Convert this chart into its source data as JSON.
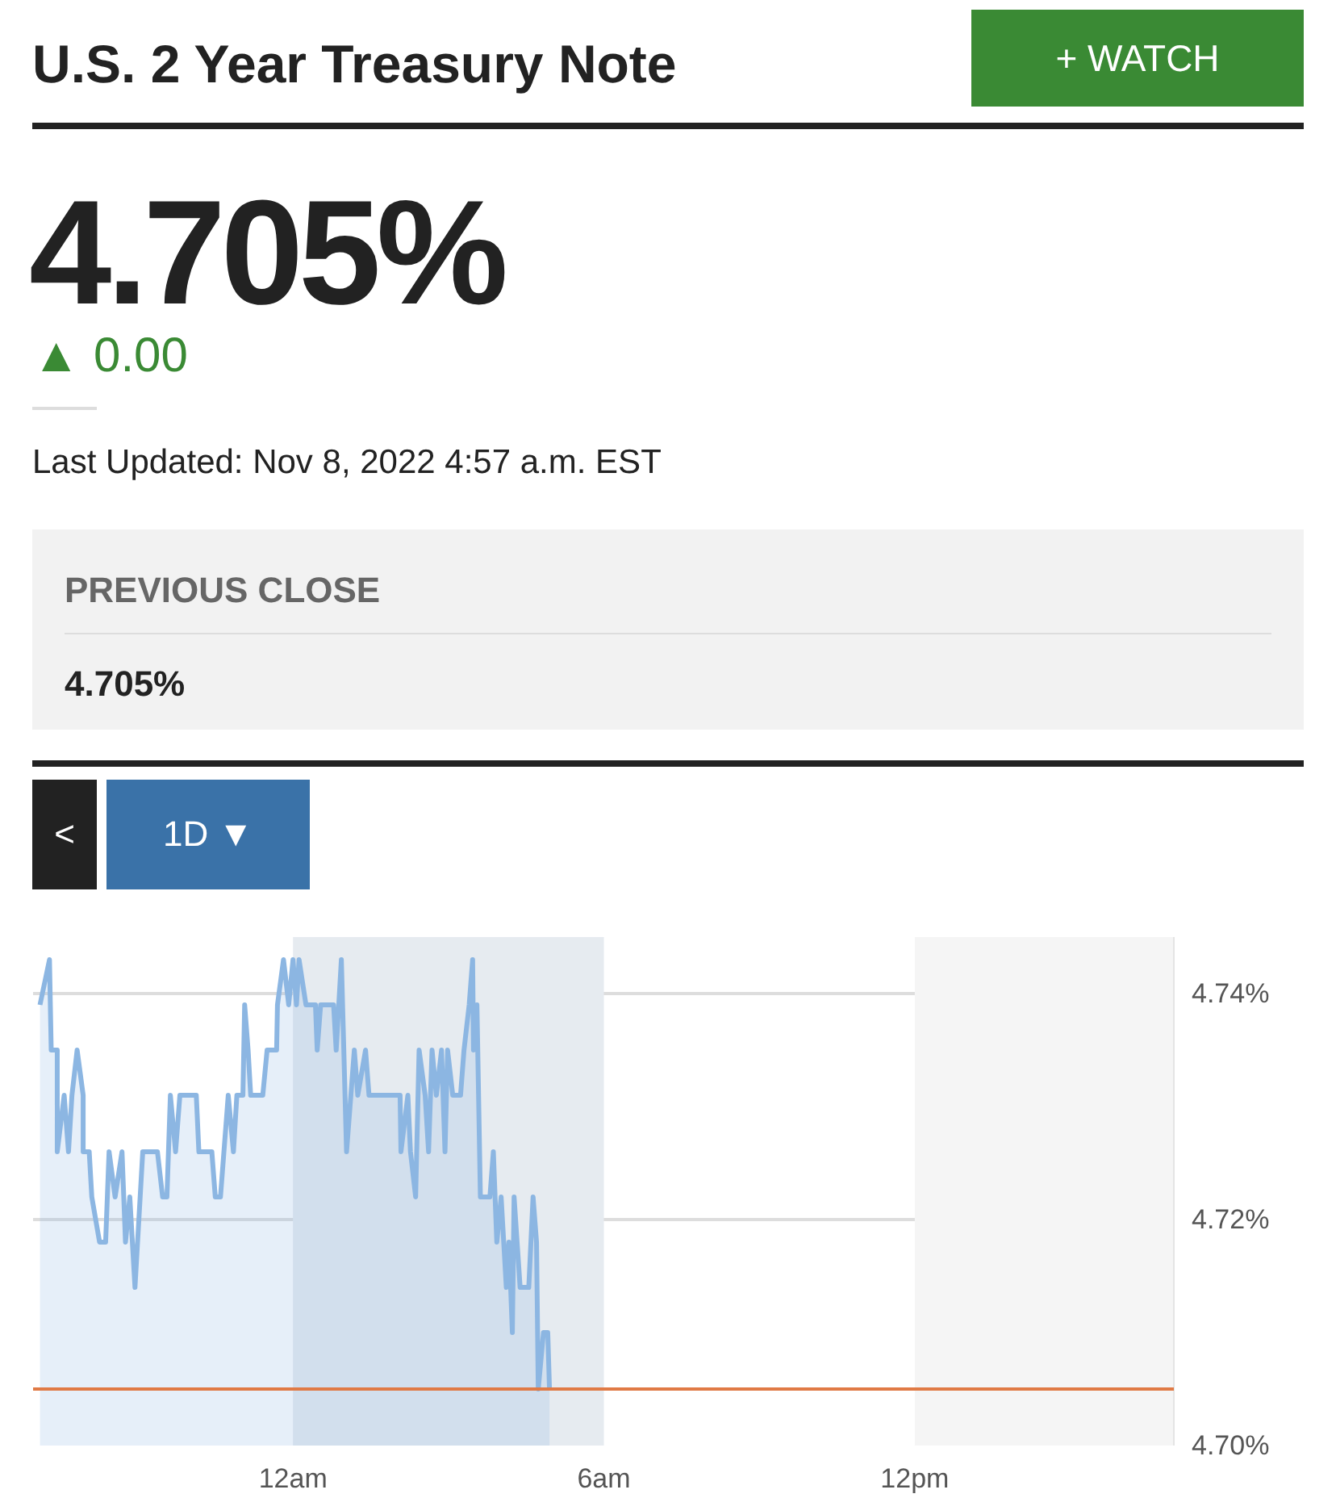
{
  "chart_data": {
    "type": "area",
    "title": "U.S. 2 Year Treasury Note",
    "annotations": [
      "+ WATCH",
      "4.705%",
      "▲ 0.00",
      "Last Updated: Nov 8, 2022 4:57 a.m. EST",
      "PREVIOUS CLOSE",
      "4.705%",
      "<",
      "1D ▼"
    ],
    "series": [
      {
        "color": "#8cb6e2",
        "x": [
          "2022-11-07T19:07",
          "2022-11-07T19:18",
          "2022-11-07T19:20",
          "2022-11-07T19:27",
          "2022-11-07T19:27",
          "2022-11-07T19:35",
          "2022-11-07T19:40",
          "2022-11-07T19:44",
          "2022-11-07T19:50",
          "2022-11-07T19:57",
          "2022-11-07T19:57",
          "2022-11-07T20:04",
          "2022-11-07T20:07",
          "2022-11-07T20:16",
          "2022-11-07T20:23",
          "2022-11-07T20:27",
          "2022-11-07T20:34",
          "2022-11-07T20:42",
          "2022-11-07T20:46",
          "2022-11-07T20:51",
          "2022-11-07T20:57",
          "2022-11-07T21:06",
          "2022-11-07T21:23",
          "2022-11-07T21:29",
          "2022-11-07T21:34",
          "2022-11-07T21:38",
          "2022-11-07T21:44",
          "2022-11-07T21:49",
          "2022-11-07T22:08",
          "2022-11-07T22:11",
          "2022-11-07T22:26",
          "2022-11-07T22:30",
          "2022-11-07T22:36",
          "2022-11-07T22:45",
          "2022-11-07T22:51",
          "2022-11-07T22:55",
          "2022-11-07T23:02",
          "2022-11-07T23:04",
          "2022-11-07T23:08",
          "2022-11-07T23:11",
          "2022-11-07T23:25",
          "2022-11-07T23:30",
          "2022-11-07T23:41",
          "2022-11-07T23:42",
          "2022-11-07T23:49",
          "2022-11-07T23:55",
          "2022-11-08T00:00",
          "2022-11-08T00:04",
          "2022-11-08T00:07",
          "2022-11-08T00:15",
          "2022-11-08T00:26",
          "2022-11-08T00:28",
          "2022-11-08T00:32",
          "2022-11-08T00:47",
          "2022-11-08T00:50",
          "2022-11-08T00:56",
          "2022-11-08T01:02",
          "2022-11-08T01:07",
          "2022-11-08T01:11",
          "2022-11-08T01:15",
          "2022-11-08T01:24",
          "2022-11-08T01:28",
          "2022-11-08T02:04",
          "2022-11-08T02:05",
          "2022-11-08T02:13",
          "2022-11-08T02:16",
          "2022-11-08T02:22",
          "2022-11-08T02:26",
          "2022-11-08T02:33",
          "2022-11-08T02:37",
          "2022-11-08T02:41",
          "2022-11-08T02:46",
          "2022-11-08T02:52",
          "2022-11-08T02:56",
          "2022-11-08T02:59",
          "2022-11-08T03:05",
          "2022-11-08T03:14",
          "2022-11-08T03:18",
          "2022-11-08T03:24",
          "2022-11-08T03:28",
          "2022-11-08T03:29",
          "2022-11-08T03:33",
          "2022-11-08T03:37",
          "2022-11-08T03:48",
          "2022-11-08T03:52",
          "2022-11-08T03:56",
          "2022-11-08T04:01",
          "2022-11-08T04:07",
          "2022-11-08T04:10",
          "2022-11-08T04:14",
          "2022-11-08T04:16",
          "2022-11-08T04:23",
          "2022-11-08T04:33",
          "2022-11-08T04:38",
          "2022-11-08T04:42",
          "2022-11-08T04:44",
          "2022-11-08T04:50",
          "2022-11-08T04:55",
          "2022-11-08T04:57"
        ],
        "values": [
          4.739,
          4.743,
          4.735,
          4.735,
          4.726,
          4.731,
          4.726,
          4.731,
          4.735,
          4.731,
          4.726,
          4.726,
          4.722,
          4.718,
          4.718,
          4.726,
          4.722,
          4.726,
          4.718,
          4.722,
          4.714,
          4.726,
          4.726,
          4.722,
          4.722,
          4.731,
          4.726,
          4.731,
          4.731,
          4.726,
          4.726,
          4.722,
          4.722,
          4.731,
          4.726,
          4.731,
          4.731,
          4.739,
          4.735,
          4.731,
          4.731,
          4.735,
          4.735,
          4.739,
          4.743,
          4.739,
          4.743,
          4.739,
          4.743,
          4.739,
          4.739,
          4.735,
          4.739,
          4.739,
          4.735,
          4.743,
          4.726,
          4.731,
          4.735,
          4.731,
          4.735,
          4.731,
          4.731,
          4.726,
          4.731,
          4.726,
          4.722,
          4.735,
          4.731,
          4.726,
          4.735,
          4.731,
          4.735,
          4.726,
          4.735,
          4.731,
          4.731,
          4.735,
          4.739,
          4.743,
          4.735,
          4.739,
          4.722,
          4.722,
          4.726,
          4.718,
          4.722,
          4.714,
          4.718,
          4.71,
          4.722,
          4.714,
          4.714,
          4.722,
          4.718,
          4.705,
          4.71,
          4.71,
          4.705
        ]
      }
    ],
    "xlim": [
      "2022-11-07T18:59",
      "2022-11-08T17:00"
    ],
    "xticks": [
      {
        "value": "2022-11-08T00:00",
        "label": "12am"
      },
      {
        "value": "2022-11-08T06:00",
        "label": "6am"
      },
      {
        "value": "2022-11-08T12:00",
        "label": "12pm"
      }
    ],
    "ylim": [
      4.7,
      4.745
    ],
    "yticks": [
      {
        "value": 4.7,
        "label": "4.70%"
      },
      {
        "value": 4.72,
        "label": "4.72%"
      },
      {
        "value": 4.74,
        "label": "4.74%"
      }
    ],
    "grid": "y",
    "ref_lines": [
      {
        "axis": "y",
        "value": 4.705,
        "color": "#e07a45"
      }
    ],
    "bands": [
      {
        "axis": "x",
        "from": "2022-11-08T00:00",
        "to": "2022-11-08T06:00",
        "color": "#e6ebf0"
      },
      {
        "axis": "x",
        "from": "2022-11-08T12:00",
        "to": "2022-11-08T17:00",
        "color": "#f5f5f5"
      }
    ]
  }
}
